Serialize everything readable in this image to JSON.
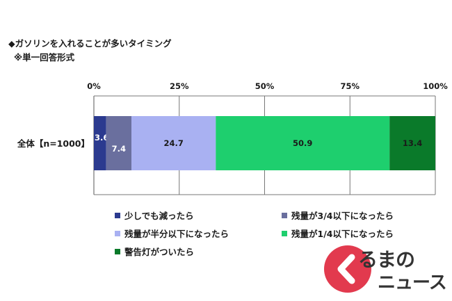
{
  "title": "◆ガソリンを入れることが多いタイミング",
  "subtitle": "※単一回答形式",
  "chart_data": {
    "type": "bar",
    "orientation": "horizontal-stacked",
    "categories": [
      "全体【n=1000】"
    ],
    "xlim": [
      0,
      100
    ],
    "xticks": [
      "0%",
      "25%",
      "50%",
      "75%",
      "100%"
    ],
    "grid": true,
    "legend_position": "bottom",
    "series": [
      {
        "name": "少しでも減ったら",
        "values": [
          3.6
        ],
        "color": "#2b3a8f",
        "label_color": "#ffffff"
      },
      {
        "name": "残量が3/4以下になったら",
        "values": [
          7.4
        ],
        "color": "#6a6f9e",
        "label_color": "#ffffff"
      },
      {
        "name": "残量が半分以下になったら",
        "values": [
          24.7
        ],
        "color": "#a9b1f2",
        "label_color": "#1a1a1a"
      },
      {
        "name": "残量が1/4以下になったら",
        "values": [
          50.9
        ],
        "color": "#1ecf6e",
        "label_color": "#1a1a1a"
      },
      {
        "name": "警告灯がついたら",
        "values": [
          13.4
        ],
        "color": "#0a7a2a",
        "label_color": "#1a1a1a"
      }
    ]
  },
  "logo": {
    "line1": "るまの",
    "line2": "ニュース"
  }
}
